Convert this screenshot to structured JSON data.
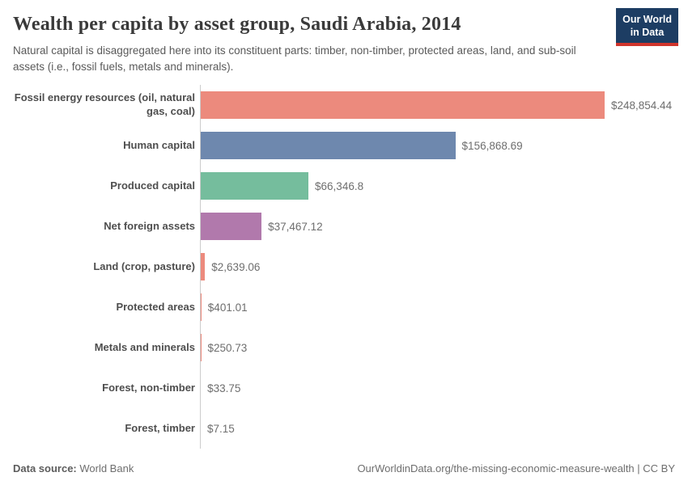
{
  "header": {
    "title": "Wealth per capita by asset group, Saudi Arabia, 2014",
    "subtitle": "Natural capital is disaggregated here into its constituent parts: timber, non-timber, protected areas, land, and sub-soil assets (i.e., fossil fuels, metals and minerals).",
    "logo": {
      "line1": "Our World",
      "line2": "in Data"
    }
  },
  "chart_data": {
    "type": "bar",
    "orientation": "horizontal",
    "title": "Wealth per capita by asset group, Saudi Arabia, 2014",
    "entity": "Saudi Arabia",
    "year": "2014",
    "xlabel": "",
    "ylabel": "",
    "xlim": [
      0,
      248854.44
    ],
    "grid": false,
    "legend": "none",
    "categories": [
      "Fossil energy resources (oil, natural gas, coal)",
      "Human capital",
      "Produced capital",
      "Net foreign assets",
      "Land (crop, pasture)",
      "Protected areas",
      "Metals and minerals",
      "Forest, non-timber",
      "Forest, timber"
    ],
    "values": [
      248854.44,
      156868.69,
      66346.8,
      37467.12,
      2639.06,
      401.01,
      250.73,
      33.75,
      7.15
    ],
    "value_labels": [
      "$248,854.44",
      "$156,868.69",
      "$66,346.8",
      "$37,467.12",
      "$2,639.06",
      "$401.01",
      "$250.73",
      "$33.75",
      "$7.15"
    ],
    "bar_colors": [
      "#ec8a7d",
      "#6e88ae",
      "#75bd9d",
      "#b179ac",
      "#ec8a7d",
      "#ec8a7d",
      "#ec8a7d",
      "#ec8a7d",
      "#ec8a7d"
    ]
  },
  "colors": {
    "logo_navy": "#1d3d63",
    "logo_red": "#d0342c",
    "axis_line": "#cccccc",
    "salmon": "#ec8a7d",
    "blue": "#6e88ae",
    "green": "#75bd9d",
    "purple": "#b179ac"
  },
  "footer": {
    "source_label": "Data source:",
    "source_value": " World Bank",
    "attribution": "OurWorldinData.org/the-missing-economic-measure-wealth | CC BY"
  }
}
